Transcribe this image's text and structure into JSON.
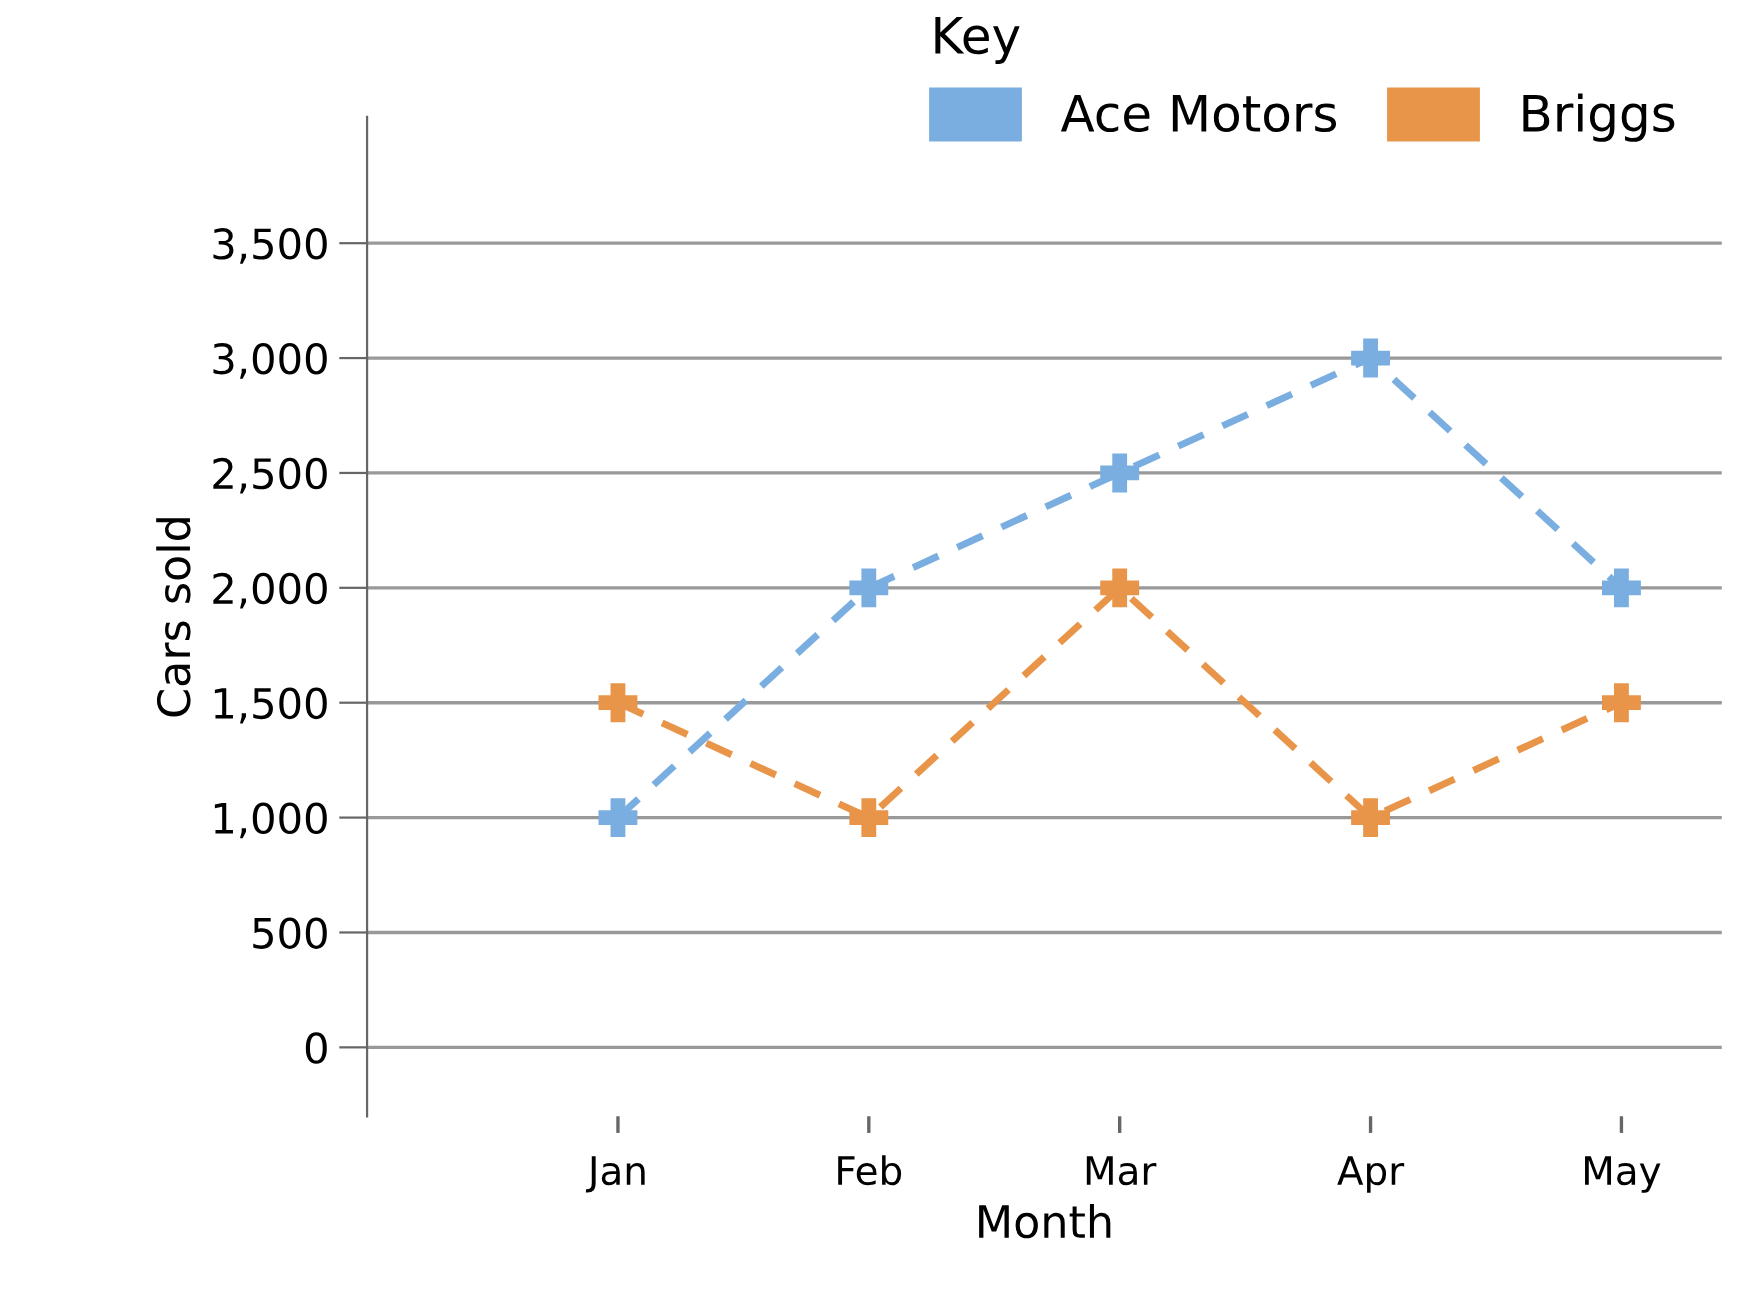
{
  "chart_data": {
    "type": "line",
    "xlabel": "Month",
    "ylabel": "Cars sold",
    "legend_title": "Key",
    "categories": [
      "Jan",
      "Feb",
      "Mar",
      "Apr",
      "May"
    ],
    "series": [
      {
        "name": "Ace Motors",
        "color": "#7aaee0",
        "values": [
          1000,
          2000,
          2500,
          3000,
          2000
        ]
      },
      {
        "name": "Briggs",
        "color": "#e8954a",
        "values": [
          1500,
          1000,
          2000,
          1000,
          1500
        ]
      }
    ],
    "ylim": [
      -300,
      4050
    ],
    "yticks": [
      {
        "value": 0,
        "label": "0"
      },
      {
        "value": 500,
        "label": "500"
      },
      {
        "value": 1000,
        "label": "1,000"
      },
      {
        "value": 1500,
        "label": "1,500"
      },
      {
        "value": 2000,
        "label": "2,000"
      },
      {
        "value": 2500,
        "label": "2,500"
      },
      {
        "value": 3000,
        "label": "3,000"
      },
      {
        "value": 3500,
        "label": "3,500"
      }
    ],
    "grid": "y",
    "legend": "top right",
    "marker": "cross",
    "line_style": "dashed"
  }
}
